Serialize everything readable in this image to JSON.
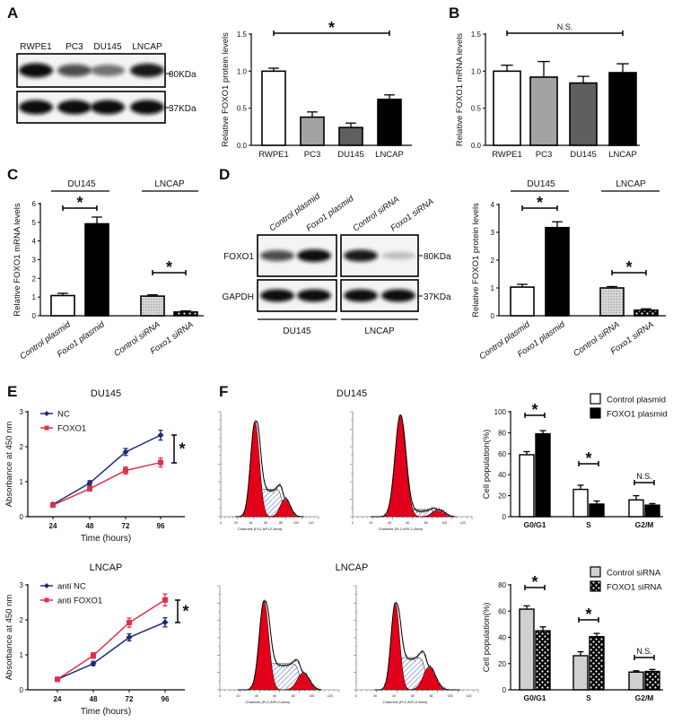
{
  "panels": [
    "A",
    "B",
    "C",
    "D",
    "E",
    "F"
  ],
  "blots": {
    "A": {
      "lanes": [
        "RWPE1",
        "PC3",
        "DU145",
        "LNCAP"
      ],
      "markers": [
        "80KDa",
        "37KDa"
      ],
      "band_intensity": [
        [
          1.0,
          0.7,
          0.55,
          0.9
        ],
        [
          1.0,
          1.0,
          1.0,
          1.0
        ]
      ]
    },
    "D": {
      "lanes": [
        "Control plasmid",
        "Foxo1 plasmid",
        "Control siRNA",
        "Foxo1 siRNA"
      ],
      "rows": [
        "FOXO1",
        "GAPDH"
      ],
      "markers": [
        "80KDa",
        "37KDa"
      ],
      "groups": [
        "DU145",
        "LNCAP"
      ],
      "band_intensity": [
        [
          0.7,
          1.0,
          0.9,
          0.2
        ],
        [
          1.0,
          1.0,
          1.0,
          1.0
        ]
      ]
    }
  },
  "chart_data": [
    {
      "panel": "A",
      "type": "bar",
      "categories": [
        "RWPE1",
        "PC3",
        "DU145",
        "LNCAP"
      ],
      "values": [
        1.0,
        0.38,
        0.24,
        0.62
      ],
      "errors": [
        0.04,
        0.07,
        0.06,
        0.06
      ],
      "fills": [
        "#ffffff",
        "#a3a3a3",
        "#5f5f5f",
        "#000000"
      ],
      "ylabel": "Relative FOXO1 protein levels",
      "ylim": [
        0,
        1.5
      ],
      "ytick_labels": [
        "0.0",
        "0.5",
        "1.0",
        "1.5"
      ],
      "significance": [
        {
          "label": "*",
          "from": 0,
          "to": 3
        }
      ]
    },
    {
      "panel": "B",
      "type": "bar",
      "categories": [
        "RWPE1",
        "PC3",
        "DU145",
        "LNCAP"
      ],
      "values": [
        1.0,
        0.92,
        0.84,
        0.98
      ],
      "errors": [
        0.08,
        0.21,
        0.09,
        0.12
      ],
      "fills": [
        "#ffffff",
        "#a3a3a3",
        "#5f5f5f",
        "#000000"
      ],
      "ylabel": "Relative FOXO1 mRNA levels",
      "ylim": [
        0,
        1.5
      ],
      "ytick_labels": [
        "0.0",
        "0.5",
        "1.0",
        "1.5"
      ],
      "significance": [
        {
          "label": "N.S.",
          "from": 0,
          "to": 3
        }
      ]
    },
    {
      "panel": "C",
      "type": "bar",
      "groups": [
        "DU145",
        "LNCAP"
      ],
      "categories": [
        "Control plasmid",
        "Foxo1 plasmid",
        "Control siRNA",
        "Foxo1 siRNA"
      ],
      "values": [
        1.08,
        4.92,
        1.05,
        0.2
      ],
      "errors": [
        0.12,
        0.36,
        0.07,
        0.06
      ],
      "fills": [
        "#ffffff",
        "#000000",
        "dots",
        "checker"
      ],
      "ylabel": "Relative FOXO1 mRNA levels",
      "ylim": [
        0,
        6
      ],
      "ytick_labels": [
        "0",
        "1",
        "2",
        "3",
        "4",
        "5",
        "6"
      ],
      "significance": [
        {
          "label": "*",
          "from": 0,
          "to": 1
        },
        {
          "label": "*",
          "from": 2,
          "to": 3
        }
      ]
    },
    {
      "panel": "D",
      "type": "bar",
      "groups": [
        "DU145",
        "LNCAP"
      ],
      "categories": [
        "Control plasmid",
        "Foxo1 plasmid",
        "Control siRNA",
        "Foxo1 siRNA"
      ],
      "values": [
        1.03,
        3.17,
        1.0,
        0.2
      ],
      "errors": [
        0.1,
        0.21,
        0.05,
        0.05
      ],
      "fills": [
        "#ffffff",
        "#000000",
        "dots",
        "checker"
      ],
      "ylabel": "Relative FOXO1 protein levels",
      "ylim": [
        0,
        4
      ],
      "ytick_labels": [
        "0",
        "1",
        "2",
        "3",
        "4"
      ],
      "significance": [
        {
          "label": "*",
          "from": 0,
          "to": 1
        },
        {
          "label": "*",
          "from": 2,
          "to": 3
        }
      ]
    },
    {
      "panel": "E",
      "type": "line",
      "title": "DU145",
      "x": [
        24,
        48,
        72,
        96
      ],
      "xtick_labels": [
        "24",
        "48",
        "72",
        "96"
      ],
      "xlabel": "Time (hours)",
      "ylabel": "Absorbance at 450 nm",
      "ylim": [
        0,
        3
      ],
      "ytick_labels": [
        "0",
        "1",
        "2",
        "3"
      ],
      "series": [
        {
          "name": "NC",
          "values": [
            0.35,
            0.96,
            1.85,
            2.33
          ],
          "errors": [
            0.05,
            0.07,
            0.1,
            0.14
          ],
          "color": "#1c2a7a",
          "marker": "diamond"
        },
        {
          "name": "FOXO1",
          "values": [
            0.33,
            0.8,
            1.32,
            1.55
          ],
          "errors": [
            0.04,
            0.06,
            0.1,
            0.13
          ],
          "color": "#e0304a",
          "marker": "square"
        }
      ],
      "significance": "*"
    },
    {
      "panel": "E",
      "type": "line",
      "title": "LNCAP",
      "x": [
        24,
        48,
        72,
        96
      ],
      "xtick_labels": [
        "24",
        "48",
        "72",
        "96"
      ],
      "xlabel": "Time (hours)",
      "ylabel": "Absorbance at 450 nm",
      "ylim": [
        0,
        3
      ],
      "ytick_labels": [
        "0",
        "1",
        "2",
        "3"
      ],
      "series": [
        {
          "name": "anti NC",
          "values": [
            0.3,
            0.75,
            1.5,
            1.93
          ],
          "errors": [
            0.04,
            0.06,
            0.1,
            0.13
          ],
          "color": "#1c2a7a",
          "marker": "diamond"
        },
        {
          "name": "anti FOXO1",
          "values": [
            0.3,
            0.98,
            1.92,
            2.57
          ],
          "errors": [
            0.04,
            0.08,
            0.13,
            0.17
          ],
          "color": "#e0304a",
          "marker": "square"
        }
      ],
      "significance": "*"
    },
    {
      "panel": "F",
      "type": "bar",
      "title": "DU145",
      "categories": [
        "G0/G1",
        "S",
        "G2/M"
      ],
      "series": [
        {
          "name": "Control plasmid",
          "values": [
            59,
            26,
            16
          ],
          "errors": [
            3,
            4,
            4
          ],
          "fill": "#ffffff"
        },
        {
          "name": "FOXO1 plasmid",
          "values": [
            79,
            12,
            11
          ],
          "errors": [
            3,
            3,
            1.5
          ],
          "fill": "#000000"
        }
      ],
      "ylabel": "Cell population(%)",
      "ylim": [
        0,
        100
      ],
      "ytick_labels": [
        "0",
        "20",
        "40",
        "60",
        "80",
        "100"
      ],
      "significance": [
        "*",
        "*",
        "N.S."
      ],
      "legend": "top-right"
    },
    {
      "panel": "F",
      "type": "bar",
      "title": "LNCAP",
      "categories": [
        "G0/G1",
        "S",
        "G2/M"
      ],
      "series": [
        {
          "name": "Control siRNA",
          "values": [
            61.5,
            26,
            13.5
          ],
          "errors": [
            2.5,
            3,
            1
          ],
          "fill": "#d0d0d0"
        },
        {
          "name": "FOXO1 siRNA",
          "values": [
            45,
            40.5,
            14
          ],
          "errors": [
            3,
            2.5,
            1.5
          ],
          "fill": "checker"
        }
      ],
      "ylabel": "Cell population(%)",
      "ylim": [
        0,
        80
      ],
      "ytick_labels": [
        "0",
        "20",
        "40",
        "60",
        "80"
      ],
      "significance": [
        "*",
        "*",
        "N.S."
      ],
      "legend": "top-right"
    }
  ],
  "histograms": {
    "xlabel": "Channels (FL2-A/FL2-Area)",
    "xtick_labels": [
      "0",
      "20",
      "40",
      "60",
      "80",
      "100",
      "120"
    ]
  }
}
